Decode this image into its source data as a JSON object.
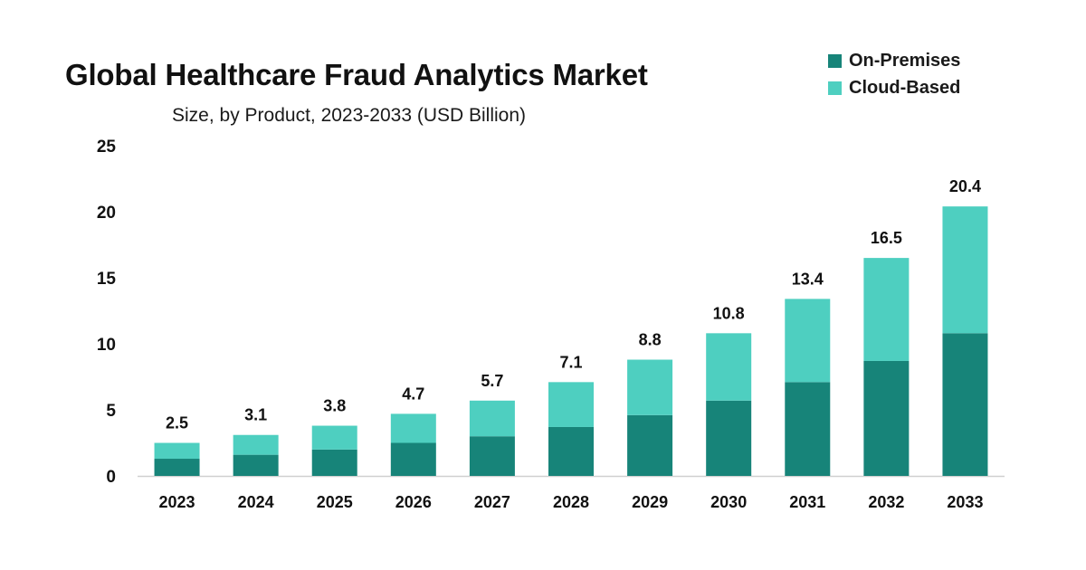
{
  "colors": {
    "on_premises": "#178479",
    "cloud_based": "#4ecfc0",
    "axis_line": "#d0d0d0"
  },
  "chart_data": {
    "type": "bar",
    "stacked": true,
    "title": "Global Healthcare Fraud Analytics Market",
    "subtitle": "Size, by Product, 2023-2033 (USD Billion)",
    "xlabel": "",
    "ylabel": "",
    "ylim": [
      0,
      25
    ],
    "yticks": [
      "0",
      "5",
      "10",
      "15",
      "20",
      "25"
    ],
    "grid": false,
    "legend_position": "top-right",
    "categories": [
      "2023",
      "2024",
      "2025",
      "2026",
      "2027",
      "2028",
      "2029",
      "2030",
      "2031",
      "2032",
      "2033"
    ],
    "series": [
      {
        "name": "On-Premises",
        "values": [
          1.3,
          1.6,
          2.0,
          2.5,
          3.0,
          3.7,
          4.6,
          5.7,
          7.1,
          8.7,
          10.8
        ]
      },
      {
        "name": "Cloud-Based",
        "values": [
          1.2,
          1.5,
          1.8,
          2.2,
          2.7,
          3.4,
          4.2,
          5.1,
          6.3,
          7.8,
          9.6
        ]
      }
    ],
    "totals": [
      "2.5",
      "3.1",
      "3.8",
      "4.7",
      "5.7",
      "7.1",
      "8.8",
      "10.8",
      "13.4",
      "16.5",
      "20.4"
    ]
  }
}
